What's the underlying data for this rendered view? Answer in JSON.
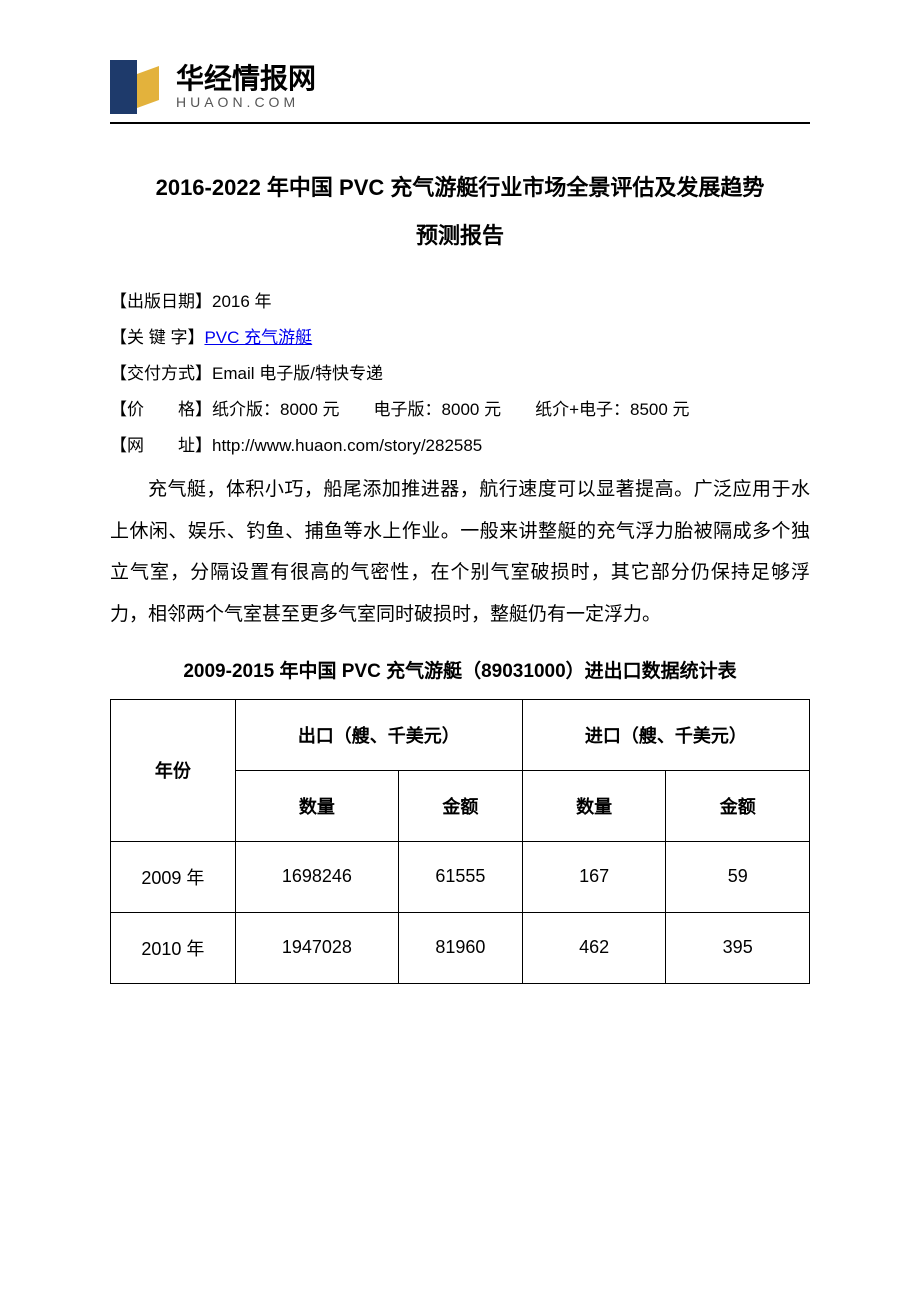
{
  "logo": {
    "cn": "华经情报网",
    "en": "HUAON.COM",
    "blue": "#1e3a6b",
    "gold": "#e3b23c"
  },
  "title_line1": "2016-2022 年中国 PVC 充气游艇行业市场全景评估及发展趋势",
  "title_line2": "预测报告",
  "meta": {
    "pub_label": "【出版日期】",
    "pub_value": "2016 年",
    "kw_label": "【关 键 字】",
    "kw_value": "PVC 充气游艇",
    "deliver_label": "【交付方式】",
    "deliver_value": "Email 电子版/特快专递",
    "price_label": "【价",
    "price_label2": "格】",
    "price_value": "纸介版：8000 元　　电子版：8000 元　　纸介+电子：8500 元",
    "url_label": "【网",
    "url_label2": "址】",
    "url_value": "http://www.huaon.com/story/282585"
  },
  "paragraph": "充气艇，体积小巧，船尾添加推进器，航行速度可以显著提高。广泛应用于水上休闲、娱乐、钓鱼、捕鱼等水上作业。一般来讲整艇的充气浮力胎被隔成多个独立气室，分隔设置有很高的气密性，在个别气室破损时，其它部分仍保持足够浮力，相邻两个气室甚至更多气室同时破损时，整艇仍有一定浮力。",
  "table": {
    "title": "2009-2015 年中国 PVC 充气游艇（89031000）进出口数据统计表",
    "col_year": "年份",
    "col_export": "出口（艘、千美元）",
    "col_import": "进口（艘、千美元）",
    "col_qty": "数量",
    "col_amt": "金额",
    "rows": [
      {
        "year": "2009 年",
        "exp_qty": "1698246",
        "exp_amt": "61555",
        "imp_qty": "167",
        "imp_amt": "59"
      },
      {
        "year": "2010 年",
        "exp_qty": "1947028",
        "exp_amt": "81960",
        "imp_qty": "462",
        "imp_amt": "395"
      }
    ]
  },
  "colors": {
    "text": "#000000",
    "link": "#0000ee",
    "border": "#000000",
    "background": "#ffffff"
  },
  "typography": {
    "title_fontsize": 22,
    "body_fontsize": 19,
    "meta_fontsize": 17,
    "table_fontsize": 18
  }
}
